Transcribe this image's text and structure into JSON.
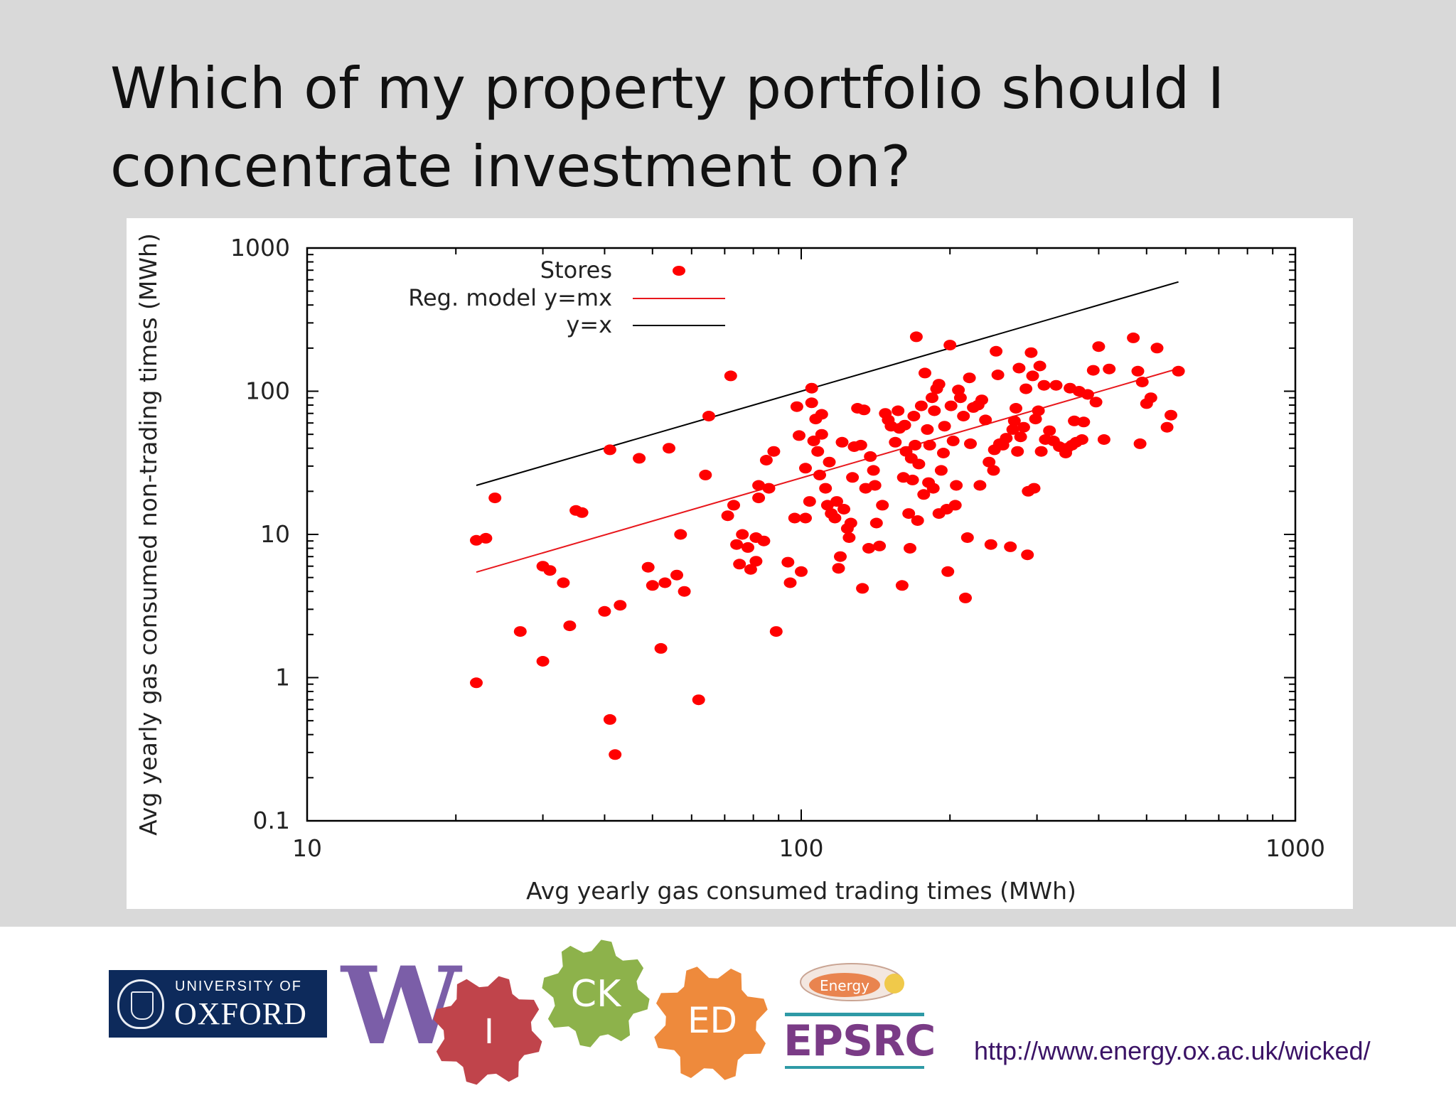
{
  "slide": {
    "title_line1": "Which of my property portfolio should I",
    "title_line2": "concentrate investment on?",
    "footer_url": "http://www.energy.ox.ac.uk/wicked/"
  },
  "logos": {
    "oxford_line1": "UNIVERSITY OF",
    "oxford_line2": "OXFORD",
    "wicked_letters": [
      "W",
      "I",
      "CK",
      "ED"
    ],
    "epsrc_badge": "Energy",
    "epsrc": "EPSRC"
  },
  "colors": {
    "background": "#d9d9d9",
    "points": "#ff0000",
    "regression_line": "#e8171c",
    "identity_line": "#000000",
    "wicked_w": "#7b5ea8",
    "gear_i": "#c0444b",
    "gear_ck": "#8db24b",
    "gear_ed": "#ee8a3c",
    "epsrc_purple": "#7a3b86",
    "oxford_blue": "#0d2a5b"
  },
  "chart_data": {
    "type": "scatter",
    "xlabel": "Avg yearly gas consumed trading times (MWh)",
    "ylabel": "Avg yearly gas consumed non-trading times (MWh)",
    "x_scale": "log",
    "y_scale": "log",
    "xlim": [
      10,
      1000
    ],
    "ylim": [
      0.1,
      1000
    ],
    "x_ticks": [
      10,
      100,
      1000
    ],
    "x_tick_labels": [
      "10",
      "100",
      "1000"
    ],
    "y_ticks": [
      0.1,
      1,
      10,
      100,
      1000
    ],
    "y_tick_labels": [
      "0.1",
      "1",
      "10",
      "100",
      "1000"
    ],
    "grid": false,
    "legend_position": "top-left",
    "series": [
      {
        "name": "Stores",
        "kind": "points",
        "points": [
          [
            22,
            0.92
          ],
          [
            22,
            9.1
          ],
          [
            23,
            9.4
          ],
          [
            24,
            18
          ],
          [
            27,
            2.1
          ],
          [
            30,
            1.3
          ],
          [
            30,
            6
          ],
          [
            31,
            5.6
          ],
          [
            33,
            4.6
          ],
          [
            34,
            2.3
          ],
          [
            35,
            14.7
          ],
          [
            36,
            14.2
          ],
          [
            40,
            2.9
          ],
          [
            41,
            39
          ],
          [
            41,
            0.51
          ],
          [
            42,
            0.29
          ],
          [
            43,
            3.2
          ],
          [
            47,
            34
          ],
          [
            49,
            5.9
          ],
          [
            50,
            4.4
          ],
          [
            52,
            1.6
          ],
          [
            53,
            4.6
          ],
          [
            54,
            40
          ],
          [
            56,
            5.2
          ],
          [
            57,
            10
          ],
          [
            58,
            4
          ],
          [
            62,
            0.7
          ],
          [
            64,
            26
          ],
          [
            65,
            67
          ],
          [
            71,
            13.5
          ],
          [
            72,
            128
          ],
          [
            73,
            16
          ],
          [
            74,
            8.5
          ],
          [
            75,
            6.2
          ],
          [
            76,
            10
          ],
          [
            78,
            8.1
          ],
          [
            79,
            5.7
          ],
          [
            81,
            9.5
          ],
          [
            81,
            6.5
          ],
          [
            82,
            22
          ],
          [
            82,
            18
          ],
          [
            84,
            9
          ],
          [
            85,
            33
          ],
          [
            86,
            21
          ],
          [
            88,
            38
          ],
          [
            89,
            2.1
          ],
          [
            94,
            6.4
          ],
          [
            95,
            4.6
          ],
          [
            97,
            13
          ],
          [
            98,
            78
          ],
          [
            99,
            49
          ],
          [
            100,
            5.5
          ],
          [
            102,
            13
          ],
          [
            102,
            29
          ],
          [
            104,
            17
          ],
          [
            105,
            83
          ],
          [
            105,
            105
          ],
          [
            106,
            45
          ],
          [
            107,
            64
          ],
          [
            108,
            38
          ],
          [
            109,
            26
          ],
          [
            110,
            50
          ],
          [
            110,
            69
          ],
          [
            112,
            21
          ],
          [
            113,
            16
          ],
          [
            114,
            32
          ],
          [
            115,
            14
          ],
          [
            117,
            13
          ],
          [
            118,
            17
          ],
          [
            119,
            5.8
          ],
          [
            120,
            7
          ],
          [
            121,
            44
          ],
          [
            122,
            15
          ],
          [
            124,
            11
          ],
          [
            125,
            9.5
          ],
          [
            126,
            12
          ],
          [
            127,
            25
          ],
          [
            128,
            41
          ],
          [
            130,
            76
          ],
          [
            132,
            42
          ],
          [
            133,
            4.2
          ],
          [
            134,
            74
          ],
          [
            135,
            21
          ],
          [
            137,
            8
          ],
          [
            138,
            35
          ],
          [
            140,
            28
          ],
          [
            141,
            22
          ],
          [
            142,
            12
          ],
          [
            144,
            8.3
          ],
          [
            146,
            16
          ],
          [
            148,
            70
          ],
          [
            150,
            63
          ],
          [
            152,
            57
          ],
          [
            155,
            44
          ],
          [
            157,
            73
          ],
          [
            158,
            55
          ],
          [
            160,
            4.4
          ],
          [
            161,
            25
          ],
          [
            162,
            58
          ],
          [
            163,
            38
          ],
          [
            165,
            14
          ],
          [
            166,
            8
          ],
          [
            167,
            34
          ],
          [
            168,
            24
          ],
          [
            169,
            67
          ],
          [
            170,
            42
          ],
          [
            171,
            240
          ],
          [
            172,
            12.5
          ],
          [
            173,
            31
          ],
          [
            175,
            79
          ],
          [
            177,
            19
          ],
          [
            178,
            134
          ],
          [
            180,
            54
          ],
          [
            181,
            23
          ],
          [
            182,
            42
          ],
          [
            184,
            90
          ],
          [
            185,
            21
          ],
          [
            186,
            73
          ],
          [
            188,
            104
          ],
          [
            190,
            112
          ],
          [
            190,
            14
          ],
          [
            192,
            28
          ],
          [
            194,
            37
          ],
          [
            195,
            57
          ],
          [
            197,
            15
          ],
          [
            198,
            5.5
          ],
          [
            200,
            210
          ],
          [
            201,
            79
          ],
          [
            203,
            45
          ],
          [
            205,
            16
          ],
          [
            206,
            22
          ],
          [
            208,
            102
          ],
          [
            210,
            90
          ],
          [
            213,
            67
          ],
          [
            215,
            3.6
          ],
          [
            217,
            9.5
          ],
          [
            219,
            124
          ],
          [
            220,
            43
          ],
          [
            223,
            77
          ],
          [
            228,
            80
          ],
          [
            230,
            22
          ],
          [
            232,
            87
          ],
          [
            236,
            63
          ],
          [
            240,
            32
          ],
          [
            242,
            8.5
          ],
          [
            245,
            28
          ],
          [
            246,
            39
          ],
          [
            248,
            190
          ],
          [
            250,
            130
          ],
          [
            252,
            43
          ],
          [
            256,
            42
          ],
          [
            260,
            47
          ],
          [
            265,
            8.2
          ],
          [
            268,
            54
          ],
          [
            270,
            62
          ],
          [
            272,
            76
          ],
          [
            274,
            38
          ],
          [
            276,
            145
          ],
          [
            278,
            48
          ],
          [
            282,
            56
          ],
          [
            285,
            104
          ],
          [
            287,
            7.2
          ],
          [
            288,
            20
          ],
          [
            292,
            186
          ],
          [
            294,
            128
          ],
          [
            296,
            21
          ],
          [
            298,
            64
          ],
          [
            302,
            73
          ],
          [
            304,
            150
          ],
          [
            306,
            38
          ],
          [
            310,
            110
          ],
          [
            312,
            46
          ],
          [
            318,
            53
          ],
          [
            324,
            45
          ],
          [
            328,
            110
          ],
          [
            333,
            41
          ],
          [
            343,
            37
          ],
          [
            345,
            40
          ],
          [
            350,
            105
          ],
          [
            353,
            42
          ],
          [
            357,
            62
          ],
          [
            360,
            44
          ],
          [
            365,
            100
          ],
          [
            370,
            46
          ],
          [
            373,
            61
          ],
          [
            380,
            95
          ],
          [
            390,
            140
          ],
          [
            395,
            84
          ],
          [
            400,
            205
          ],
          [
            410,
            46
          ],
          [
            420,
            143
          ],
          [
            470,
            236
          ],
          [
            480,
            138
          ],
          [
            485,
            43
          ],
          [
            490,
            116
          ],
          [
            500,
            82
          ],
          [
            510,
            90
          ],
          [
            525,
            200
          ],
          [
            550,
            56
          ],
          [
            560,
            68
          ],
          [
            580,
            138
          ]
        ]
      },
      {
        "name": "Reg. model y=mx",
        "kind": "line",
        "points": [
          [
            22,
            5.45
          ],
          [
            580,
            144
          ]
        ]
      },
      {
        "name": "y=x",
        "kind": "line",
        "points": [
          [
            22,
            22
          ],
          [
            580,
            580
          ]
        ]
      }
    ]
  }
}
